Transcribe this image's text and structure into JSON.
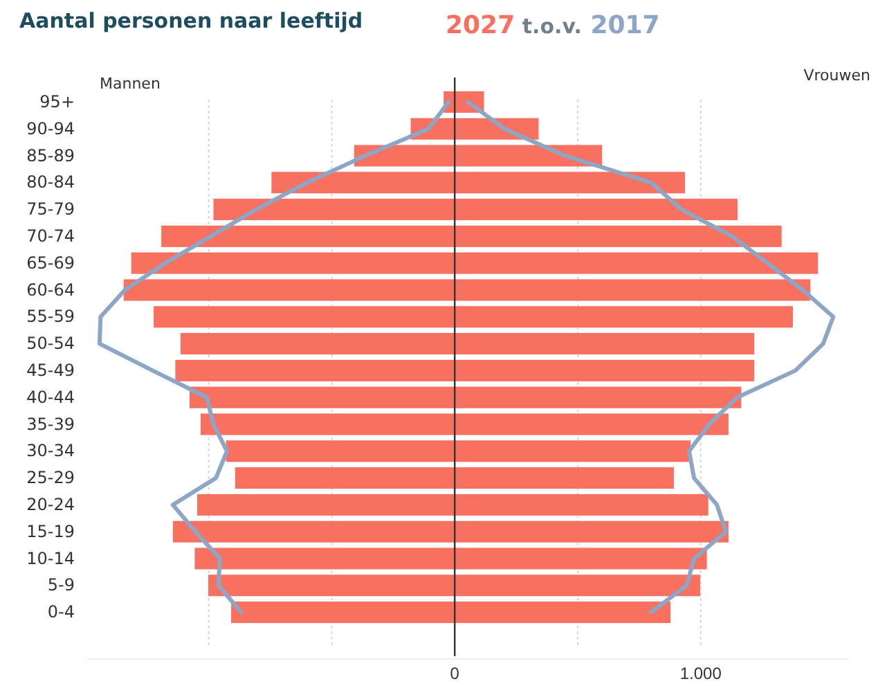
{
  "chart_data": {
    "type": "bar",
    "orientation": "horizontal",
    "stacked": true,
    "title": "Aantal personen naar leeftijd",
    "subtitle": "2027 t.o.v. 2017",
    "categories": [
      "95+",
      "90-94",
      "85-89",
      "80-84",
      "75-79",
      "70-74",
      "65-69",
      "60-64",
      "55-59",
      "50-54",
      "45-49",
      "40-44",
      "35-39",
      "30-34",
      "25-29",
      "20-24",
      "15-19",
      "10-14",
      "5-9",
      "0-4"
    ],
    "series": [
      {
        "color": "#f8705f",
        "values": [
          -45,
          -179,
          -409,
          -745,
          -981,
          -1193,
          -1315,
          -1346,
          -1224,
          -1115,
          -1136,
          -1078,
          -1033,
          -930,
          -893,
          -1047,
          -1146,
          -1057,
          -1002,
          -909
        ]
      },
      {
        "color": "#f8705f",
        "values": [
          119,
          341,
          599,
          936,
          1150,
          1329,
          1477,
          1446,
          1375,
          1218,
          1218,
          1165,
          1113,
          959,
          891,
          1031,
          1113,
          1025,
          998,
          877
        ]
      },
      {
        "type": "line",
        "color": "#8ea6c6",
        "values": [
          -25,
          -107,
          -364,
          -601,
          -807,
          -992,
          -1177,
          -1341,
          -1440,
          -1444,
          -1228,
          -1008,
          -981,
          -926,
          -971,
          -1146,
          -1054,
          -955,
          -961,
          -868
        ]
      },
      {
        "type": "line",
        "color": "#8ea6c6",
        "values": [
          54,
          202,
          449,
          798,
          922,
          1128,
          1272,
          1415,
          1539,
          1498,
          1385,
          1148,
          1035,
          953,
          973,
          1066,
          1103,
          973,
          943,
          798
        ]
      }
    ],
    "annotations": [
      "Mannen",
      "Vrouwen"
    ],
    "xlim": [
      -1500,
      1600
    ],
    "xticks": [
      {
        "value": -1000,
        "label": null
      },
      {
        "value": -500,
        "label": null
      },
      0,
      {
        "value": 500,
        "label": null
      },
      {
        "value": 1000,
        "label": "1.000"
      }
    ],
    "grid": "x",
    "line_style": "solid",
    "marker": "none",
    "ref_lines": [
      {
        "axis": "x",
        "value": 0,
        "color": "#333333"
      }
    ]
  }
}
